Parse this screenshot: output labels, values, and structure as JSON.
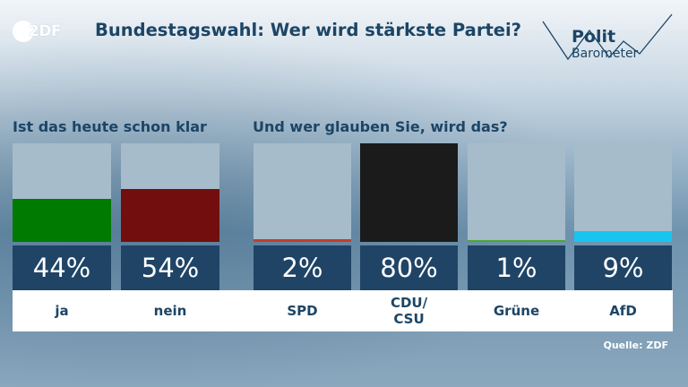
{
  "header": {
    "logo_text": "2DF",
    "title": "Bundestagswahl: Wer wird stärkste Partei?",
    "brand_polit": "Polit",
    "brand_barometer": "Barometer"
  },
  "source": "Quelle: ZDF",
  "colors": {
    "ja": "#007a00",
    "nein": "#730e0e",
    "SPD": "#c83a2a",
    "CDU/CSU": "#1b1b1b",
    "Grüne": "#4aa832",
    "AfD": "#18c4f0"
  },
  "chart_data": [
    {
      "type": "bar",
      "title": "Ist das heute schon klar",
      "categories": [
        "ja",
        "nein"
      ],
      "display_labels": [
        "ja",
        "nein"
      ],
      "values": [
        44,
        54
      ],
      "value_labels": [
        "44%",
        "54%"
      ],
      "ylim": [
        0,
        100
      ]
    },
    {
      "type": "bar",
      "title": "Und wer glauben Sie, wird das?",
      "categories": [
        "SPD",
        "CDU/CSU",
        "Grüne",
        "AfD"
      ],
      "display_labels": [
        "SPD",
        "CDU/\nCSU",
        "Grüne",
        "AfD"
      ],
      "values": [
        2,
        80,
        1,
        9
      ],
      "value_labels": [
        "2%",
        "80%",
        "1%",
        "9%"
      ],
      "ylim": [
        0,
        80
      ]
    }
  ]
}
